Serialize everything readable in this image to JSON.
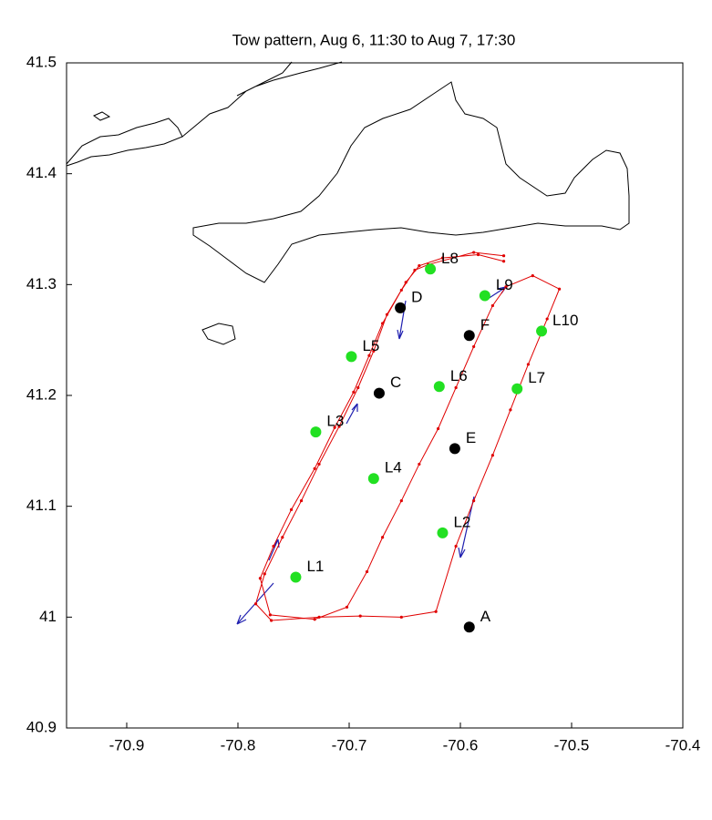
{
  "chart_data": {
    "type": "scatter",
    "title": "Tow pattern, Aug 6, 11:30 to Aug 7, 17:30",
    "xlim": [
      -70.95,
      -70.4
    ],
    "ylim": [
      40.9,
      41.5
    ],
    "xticks": [
      -70.9,
      -70.8,
      -70.7,
      -70.6,
      -70.5,
      -70.4
    ],
    "yticks": [
      40.9,
      41,
      41.1,
      41.2,
      41.3,
      41.4,
      41.5
    ],
    "track": {
      "color": "#e00000",
      "x": [
        -70.561,
        -70.588,
        -70.629,
        -70.641,
        -70.653,
        -70.67,
        -70.682,
        -70.696,
        -70.713,
        -70.731,
        -70.752,
        -70.768,
        -70.78,
        -70.771,
        -70.731,
        -70.702,
        -70.684,
        -70.67,
        -70.653,
        -70.637,
        -70.62,
        -70.604,
        -70.588,
        -70.571,
        -70.559,
        -70.535,
        -70.511,
        -70.522,
        -70.539,
        -70.555,
        -70.571,
        -70.588,
        -70.604,
        -70.622,
        -70.653,
        -70.69,
        -70.727,
        -70.77,
        -70.784,
        -70.776,
        -70.76,
        -70.743,
        -70.727,
        -70.709,
        -70.692,
        -70.678,
        -70.666,
        -70.649,
        -70.637,
        -70.616,
        -70.584,
        -70.561
      ],
      "y": [
        41.326,
        41.329,
        41.318,
        41.313,
        41.295,
        41.265,
        41.236,
        41.203,
        41.171,
        41.134,
        41.097,
        41.064,
        41.035,
        41.002,
        40.998,
        41.009,
        41.041,
        41.072,
        41.105,
        41.138,
        41.17,
        41.207,
        41.244,
        41.281,
        41.298,
        41.308,
        41.296,
        41.269,
        41.228,
        41.187,
        41.146,
        41.105,
        41.064,
        41.005,
        41.0,
        41.001,
        41.0,
        40.997,
        41.012,
        41.039,
        41.072,
        41.105,
        41.138,
        41.172,
        41.207,
        41.24,
        41.273,
        41.302,
        41.317,
        41.324,
        41.327,
        41.321
      ]
    },
    "points": [
      {
        "label": "A",
        "x": -70.592,
        "y": 40.991,
        "color": "#000000"
      },
      {
        "label": "C",
        "x": -70.673,
        "y": 41.202,
        "color": "#000000"
      },
      {
        "label": "D",
        "x": -70.654,
        "y": 41.279,
        "color": "#000000"
      },
      {
        "label": "E",
        "x": -70.605,
        "y": 41.152,
        "color": "#000000"
      },
      {
        "label": "F",
        "x": -70.592,
        "y": 41.254,
        "color": "#000000"
      },
      {
        "label": "L1",
        "x": -70.748,
        "y": 41.036,
        "color": "#22e022"
      },
      {
        "label": "L2",
        "x": -70.616,
        "y": 41.076,
        "color": "#22e022"
      },
      {
        "label": "L3",
        "x": -70.73,
        "y": 41.167,
        "color": "#22e022"
      },
      {
        "label": "L4",
        "x": -70.678,
        "y": 41.125,
        "color": "#22e022"
      },
      {
        "label": "L5",
        "x": -70.698,
        "y": 41.235,
        "color": "#22e022"
      },
      {
        "label": "L6",
        "x": -70.619,
        "y": 41.208,
        "color": "#22e022"
      },
      {
        "label": "L7",
        "x": -70.549,
        "y": 41.206,
        "color": "#22e022"
      },
      {
        "label": "L8",
        "x": -70.627,
        "y": 41.314,
        "color": "#22e022"
      },
      {
        "label": "L9",
        "x": -70.578,
        "y": 41.29,
        "color": "#22e022"
      },
      {
        "label": "L10",
        "x": -70.527,
        "y": 41.258,
        "color": "#22e022"
      }
    ]
  }
}
